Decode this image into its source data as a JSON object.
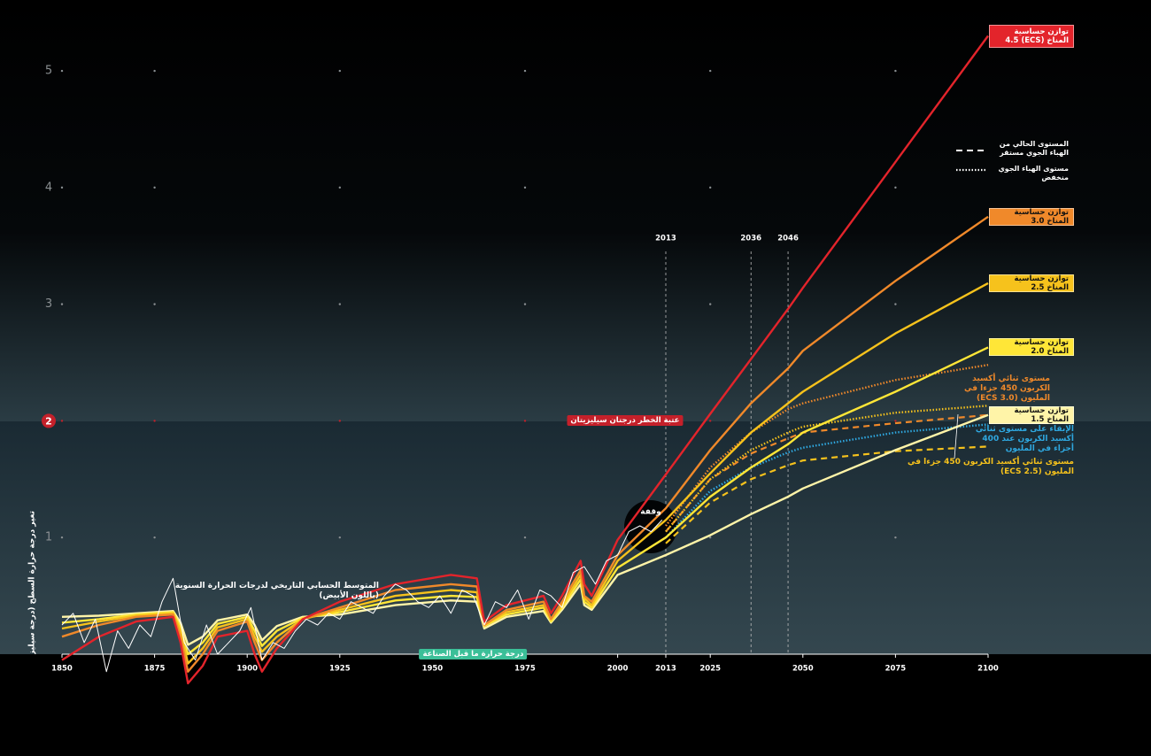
{
  "chart_data": {
    "type": "line",
    "y_label": "تغير درجة حرارة السطح (درجة سيليزية)",
    "xlim": [
      1850,
      2100
    ],
    "xticks": [
      1850,
      1875,
      1900,
      1925,
      1950,
      1975,
      2000,
      2013,
      2025,
      2050,
      2075,
      2100
    ],
    "ylim": [
      -0.3,
      5.6
    ],
    "yticks": [
      1,
      2,
      3,
      4,
      5
    ],
    "highlight_ytick": 2,
    "grid": "dots",
    "vlines": [
      2013,
      2036,
      2046
    ],
    "threshold_label": "عتبة الخطر درجتان سيليزيتان",
    "baseline_label": "درجة حرارة ما قبل الصناعة",
    "hiatus_label": "وقفة",
    "line_style_legend": [
      {
        "label": "المستوى الحالي من الهباء الجوي مستقر",
        "dash": "dashed"
      },
      {
        "label": "مستوى الهباء الجوي منخفض",
        "dash": "dotted"
      }
    ],
    "series": [
      {
        "name": "المتوسط الحسابي التاريخي لدرجات الحرارة السنوية (باللون الأبيض)",
        "color": "#ffffff",
        "dash": "solid",
        "label_style": "text",
        "x": [
          1850,
          1853,
          1856,
          1859,
          1862,
          1865,
          1868,
          1871,
          1874,
          1877,
          1880,
          1883,
          1886,
          1889,
          1892,
          1895,
          1898,
          1901,
          1904,
          1907,
          1910,
          1913,
          1916,
          1919,
          1922,
          1925,
          1928,
          1931,
          1934,
          1937,
          1940,
          1943,
          1946,
          1949,
          1952,
          1955,
          1958,
          1961,
          1964,
          1967,
          1970,
          1973,
          1976,
          1979,
          1982,
          1985,
          1988,
          1991,
          1994,
          1997,
          2000,
          2003,
          2006,
          2009,
          2012
        ],
        "values": [
          0.25,
          0.35,
          0.1,
          0.3,
          -0.15,
          0.2,
          0.05,
          0.25,
          0.15,
          0.45,
          0.65,
          0.1,
          -0.05,
          0.25,
          0.0,
          0.1,
          0.2,
          0.4,
          -0.05,
          0.1,
          0.05,
          0.2,
          0.3,
          0.25,
          0.35,
          0.3,
          0.45,
          0.4,
          0.35,
          0.5,
          0.6,
          0.55,
          0.45,
          0.4,
          0.5,
          0.35,
          0.55,
          0.5,
          0.25,
          0.45,
          0.4,
          0.55,
          0.3,
          0.55,
          0.5,
          0.4,
          0.7,
          0.75,
          0.6,
          0.8,
          0.85,
          1.05,
          1.1,
          1.05,
          1.15
        ]
      },
      {
        "name": "توازن حساسية المناخ (ECS) 4.5",
        "color": "#e3242b",
        "dash": "solid",
        "label_style": "box",
        "x": [
          1850,
          1860,
          1870,
          1880,
          1882,
          1884,
          1888,
          1892,
          1900,
          1902,
          1904,
          1908,
          1915,
          1925,
          1940,
          1955,
          1962,
          1964,
          1970,
          1980,
          1982,
          1985,
          1990,
          1991,
          1993,
          2000,
          2013,
          2025,
          2036,
          2046,
          2050,
          2075,
          2100
        ],
        "values": [
          -0.05,
          0.15,
          0.28,
          0.32,
          0.1,
          -0.25,
          -0.1,
          0.15,
          0.2,
          0.0,
          -0.15,
          0.05,
          0.3,
          0.45,
          0.6,
          0.68,
          0.65,
          0.28,
          0.42,
          0.5,
          0.35,
          0.5,
          0.8,
          0.6,
          0.5,
          0.98,
          1.54,
          2.06,
          2.53,
          2.96,
          3.14,
          4.22,
          5.3
        ]
      },
      {
        "name": "توازن حساسية المناخ 3.0",
        "color": "#f0892a",
        "dash": "solid",
        "label_style": "box",
        "x": [
          1850,
          1860,
          1870,
          1880,
          1882,
          1884,
          1888,
          1892,
          1900,
          1902,
          1904,
          1908,
          1915,
          1925,
          1940,
          1955,
          1962,
          1964,
          1970,
          1980,
          1982,
          1985,
          1990,
          1991,
          1993,
          2000,
          2013,
          2025,
          2036,
          2046,
          2050,
          2075,
          2100
        ],
        "values": [
          0.15,
          0.25,
          0.32,
          0.34,
          0.15,
          -0.15,
          0.0,
          0.2,
          0.28,
          0.1,
          -0.05,
          0.1,
          0.3,
          0.4,
          0.55,
          0.6,
          0.58,
          0.25,
          0.38,
          0.45,
          0.3,
          0.45,
          0.72,
          0.5,
          0.45,
          0.85,
          1.25,
          1.75,
          2.15,
          2.45,
          2.6,
          3.2,
          3.75
        ]
      },
      {
        "name": "توازن حساسية المناخ 2.5",
        "color": "#f6c21c",
        "dash": "solid",
        "label_style": "box",
        "x": [
          1850,
          1860,
          1870,
          1880,
          1882,
          1884,
          1888,
          1892,
          1900,
          1902,
          1904,
          1908,
          1915,
          1925,
          1940,
          1955,
          1962,
          1964,
          1970,
          1980,
          1982,
          1985,
          1990,
          1991,
          1993,
          2000,
          2013,
          2025,
          2036,
          2046,
          2050,
          2075,
          2100
        ],
        "values": [
          0.22,
          0.28,
          0.33,
          0.35,
          0.2,
          -0.08,
          0.05,
          0.23,
          0.3,
          0.15,
          0.02,
          0.15,
          0.3,
          0.38,
          0.5,
          0.55,
          0.53,
          0.25,
          0.36,
          0.42,
          0.3,
          0.42,
          0.68,
          0.48,
          0.42,
          0.8,
          1.15,
          1.55,
          1.9,
          2.15,
          2.25,
          2.75,
          3.18
        ]
      },
      {
        "name": "توازن حساسية المناخ 2.0",
        "color": "#ffe637",
        "dash": "solid",
        "label_style": "box",
        "x": [
          1850,
          1860,
          1870,
          1880,
          1882,
          1884,
          1888,
          1892,
          1900,
          1902,
          1904,
          1908,
          1915,
          1925,
          1940,
          1955,
          1962,
          1964,
          1970,
          1980,
          1982,
          1985,
          1990,
          1991,
          1993,
          2000,
          2013,
          2025,
          2036,
          2046,
          2050,
          2075,
          2100
        ],
        "values": [
          0.27,
          0.3,
          0.34,
          0.36,
          0.23,
          0.0,
          0.1,
          0.26,
          0.32,
          0.2,
          0.07,
          0.2,
          0.31,
          0.36,
          0.46,
          0.5,
          0.49,
          0.24,
          0.34,
          0.4,
          0.28,
          0.4,
          0.64,
          0.45,
          0.4,
          0.74,
          1.0,
          1.35,
          1.6,
          1.8,
          1.9,
          2.25,
          2.63
        ]
      },
      {
        "name": "توازن حساسية المناخ 1.5",
        "color": "#fff4a8",
        "dash": "solid",
        "label_style": "box",
        "x": [
          1850,
          1860,
          1870,
          1880,
          1882,
          1884,
          1888,
          1892,
          1900,
          1902,
          1904,
          1908,
          1915,
          1925,
          1940,
          1955,
          1962,
          1964,
          1970,
          1980,
          1982,
          1985,
          1990,
          1991,
          1993,
          2000,
          2013,
          2025,
          2036,
          2046,
          2050,
          2075,
          2100
        ],
        "values": [
          0.32,
          0.33,
          0.35,
          0.37,
          0.27,
          0.08,
          0.15,
          0.29,
          0.34,
          0.25,
          0.12,
          0.24,
          0.32,
          0.34,
          0.42,
          0.46,
          0.45,
          0.22,
          0.32,
          0.37,
          0.27,
          0.38,
          0.6,
          0.42,
          0.38,
          0.68,
          0.85,
          1.02,
          1.2,
          1.35,
          1.42,
          1.75,
          2.05
        ]
      },
      {
        "name": "مستوى ثنائي أكسيد الكربون 450 جزءا في المليون (ECS 3.0)",
        "color": "#f0892a",
        "dash": "dotted",
        "label_style": "text",
        "x": [
          2013,
          2025,
          2036,
          2046,
          2050,
          2075,
          2100
        ],
        "values": [
          1.1,
          1.6,
          1.9,
          2.1,
          2.15,
          2.35,
          2.48
        ]
      },
      {
        "color": "#f6c21c",
        "dash": "dotted",
        "x": [
          2013,
          2025,
          2036,
          2046,
          2050,
          2075,
          2100
        ],
        "values": [
          1.05,
          1.5,
          1.75,
          1.9,
          1.95,
          2.07,
          2.13
        ]
      },
      {
        "color": "#f0892a",
        "dash": "dashed",
        "x": [
          2013,
          2025,
          2036,
          2046,
          2050,
          2075,
          2100
        ],
        "values": [
          1.05,
          1.5,
          1.72,
          1.85,
          1.9,
          1.98,
          2.05
        ]
      },
      {
        "name": "الإبقاء على مستوى ثنائي أكسيد الكربون عند 400 أجزاء في المليون",
        "color": "#2fa8e0",
        "dash": "dotted",
        "label_style": "text",
        "x": [
          2013,
          2025,
          2036,
          2046,
          2050,
          2075,
          2100
        ],
        "values": [
          1.0,
          1.4,
          1.6,
          1.73,
          1.77,
          1.9,
          1.97
        ]
      },
      {
        "name": "مستوى ثنائي أكسيد الكربون 450 جزءا في المليون (ECS 2.5)",
        "color": "#f6c21c",
        "dash": "dashed",
        "label_style": "text",
        "x": [
          2013,
          2025,
          2036,
          2046,
          2050,
          2075,
          2100
        ],
        "values": [
          0.95,
          1.3,
          1.5,
          1.62,
          1.66,
          1.74,
          1.78
        ]
      }
    ]
  }
}
